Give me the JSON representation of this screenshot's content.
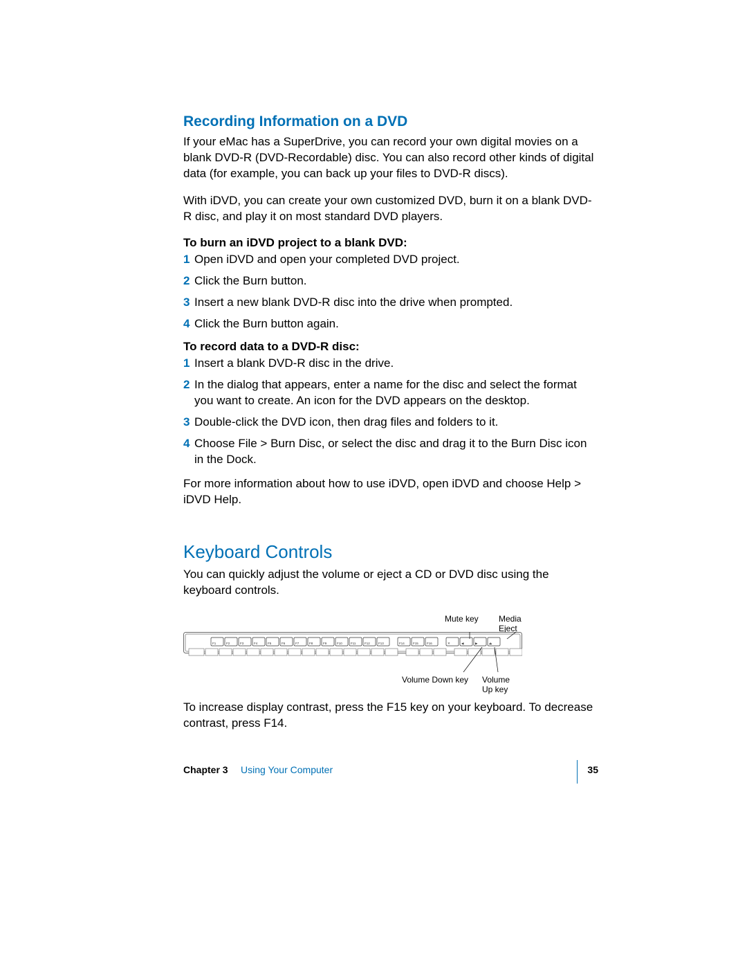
{
  "section1": {
    "heading": "Recording Information on a DVD",
    "para1": "If your eMac has a SuperDrive, you can record your own digital movies on a blank DVD-R (DVD-Recordable) disc. You can also record other kinds of digital data (for example, you can back up your files to DVD-R discs).",
    "para2": "With iDVD, you can create your own customized DVD, burn it on a blank DVD-R disc, and play it on most standard DVD players.",
    "sub1": "To burn an iDVD project to a blank DVD:",
    "steps1": [
      "Open iDVD and open your completed DVD project.",
      "Click the Burn button.",
      "Insert a new blank DVD-R disc into the drive when prompted.",
      "Click the Burn button again."
    ],
    "sub2": "To record data to a DVD-R disc:",
    "steps2": [
      "Insert a blank DVD-R disc in the drive.",
      "In the dialog that appears, enter a name for the disc and select the format you want to create. An icon for the DVD appears on the desktop.",
      "Double-click the DVD icon, then drag files and folders to it.",
      "Choose File > Burn Disc, or select the disc and drag it to the Burn Disc icon in the Dock."
    ],
    "para3": "For more information about how to use iDVD, open iDVD and choose Help > iDVD Help."
  },
  "section2": {
    "heading": "Keyboard Controls",
    "para1": "You can quickly adjust the volume or eject a CD or DVD disc using the keyboard controls.",
    "para2": "To increase display contrast, press the F15 key on your keyboard. To decrease contrast, press F14.",
    "figure": {
      "type": "diagram",
      "labels": {
        "mute": "Mute key",
        "eject": "Media Eject key",
        "voldown": "Volume Down key",
        "volup": "Volume Up key"
      },
      "fkeys": [
        "F1",
        "F2",
        "F3",
        "F4",
        "F5",
        "F6",
        "F7",
        "F8",
        "F9",
        "F10",
        "F11",
        "F12",
        "F13",
        "F14",
        "F15",
        "F16"
      ],
      "media_keys_count": 4,
      "border_color": "#6b6b6b",
      "key_fill": "#ffffff",
      "key_stroke": "#333333",
      "key_label_fontsize": 4.5,
      "label_fontsize": 12
    }
  },
  "footer": {
    "chapter": "Chapter 3",
    "title": "Using Your Computer",
    "page": "35"
  },
  "colors": {
    "accent": "#0070b5",
    "text": "#000000",
    "background": "#ffffff"
  }
}
